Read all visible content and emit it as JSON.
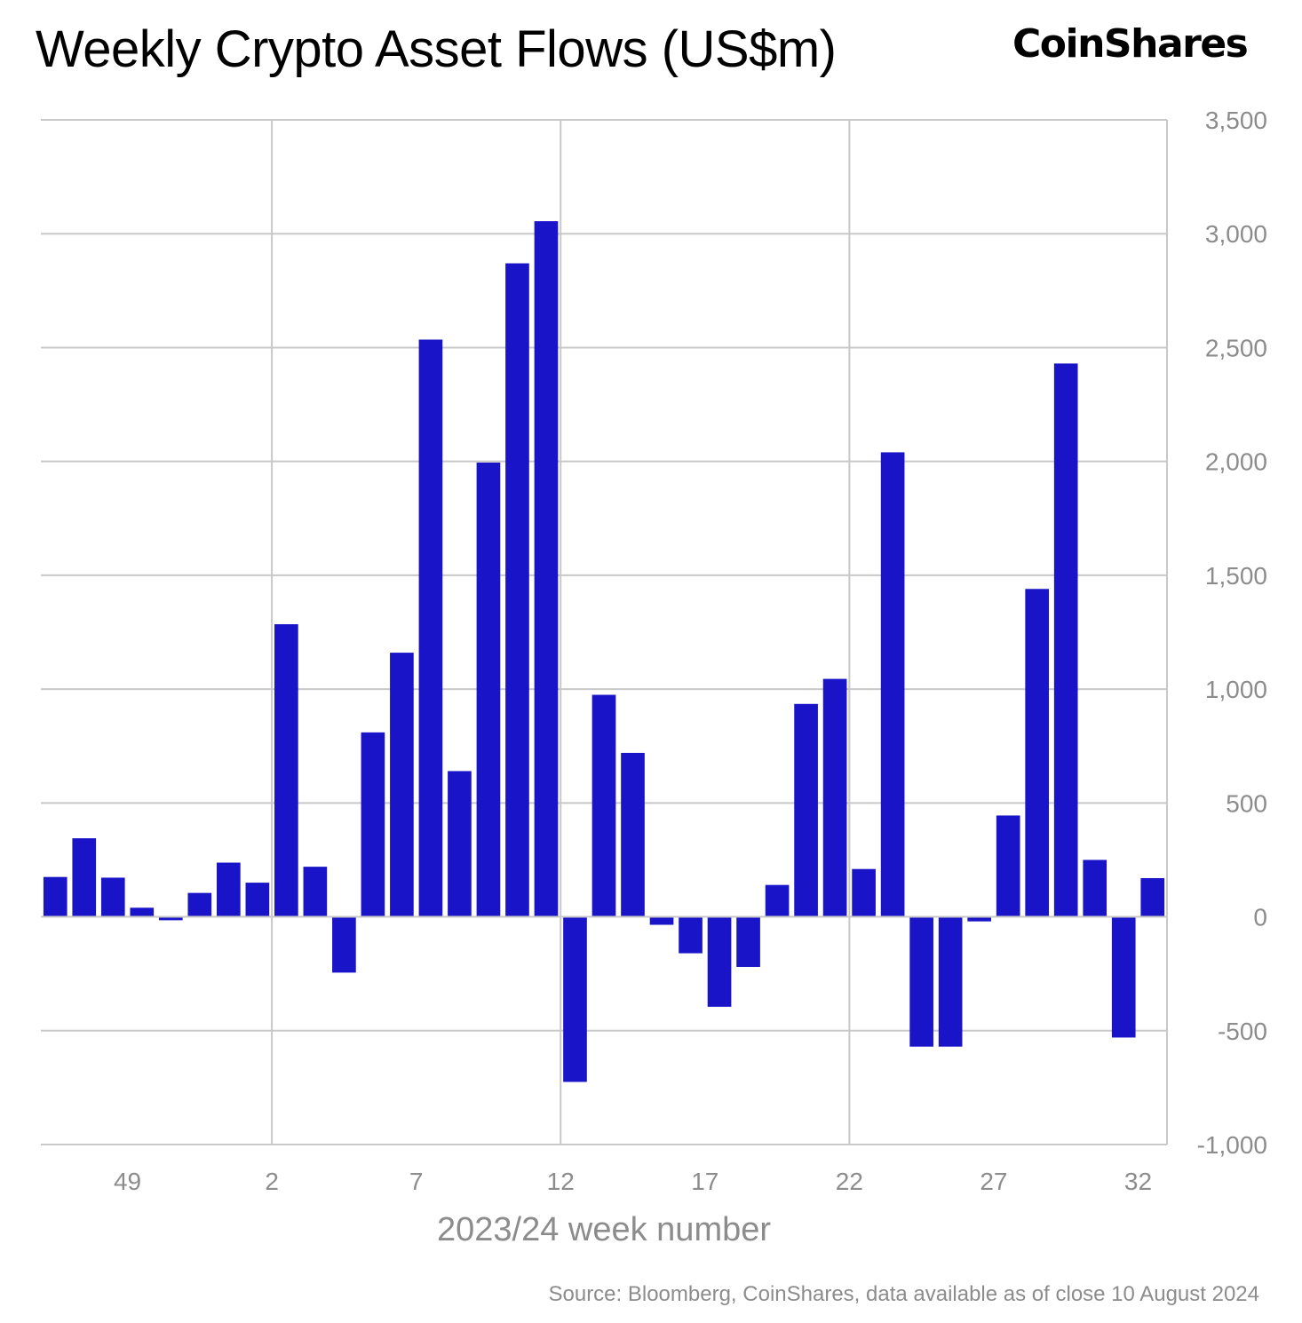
{
  "header": {
    "title": "Weekly Crypto Asset Flows (US$m)",
    "brand": "CoinShares"
  },
  "footer": {
    "source": "Source: Bloomberg, CoinShares, data available as of close 10 August 2024"
  },
  "colors": {
    "bar": "#1a14c8",
    "grid": "#c8c8c8",
    "tick_text": "#8c8c8c"
  },
  "chart_data": {
    "type": "bar",
    "title": "Weekly Crypto Asset Flows (US$m)",
    "xlabel": "2023/24 week number",
    "ylabel": "",
    "ylim": [
      -1000,
      3500
    ],
    "y_ticks": [
      3500,
      3000,
      2500,
      2000,
      1500,
      1000,
      500,
      0,
      -500,
      -1000
    ],
    "y_tick_labels": [
      "3,500",
      "3,000",
      "2,500",
      "2,000",
      "1,500",
      "1,000",
      "500",
      "0",
      "-500",
      "-1,000"
    ],
    "y_axis_position": "right",
    "x_tick_labels": [
      "49",
      "2",
      "7",
      "12",
      "17",
      "22",
      "27",
      "32"
    ],
    "x_tick_categories": [
      "49",
      "2",
      "7",
      "12",
      "17",
      "22",
      "27",
      "32"
    ],
    "grid": true,
    "categories": [
      "46",
      "47",
      "48",
      "49",
      "50",
      "51",
      "52",
      "1",
      "2",
      "3",
      "4",
      "5",
      "6",
      "7",
      "8",
      "9",
      "10",
      "11",
      "12",
      "13",
      "14",
      "15",
      "16",
      "17",
      "18",
      "19",
      "20",
      "21",
      "22",
      "23",
      "24",
      "25",
      "26",
      "27",
      "28",
      "29",
      "30",
      "31",
      "32"
    ],
    "values": [
      175,
      345,
      172,
      40,
      -15,
      105,
      238,
      150,
      1285,
      220,
      -245,
      810,
      1160,
      2535,
      640,
      1995,
      2870,
      3055,
      -725,
      975,
      720,
      -35,
      -160,
      -395,
      -220,
      140,
      935,
      1045,
      210,
      2040,
      -570,
      -570,
      -20,
      445,
      1440,
      2430,
      250,
      -530,
      170
    ]
  }
}
